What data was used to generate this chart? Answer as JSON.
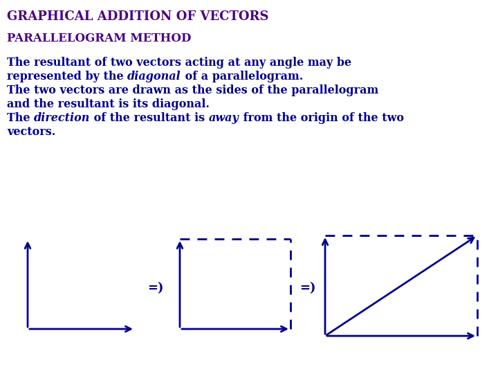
{
  "title": "GRAPHICAL ADDITION OF VECTORS",
  "subtitle": "PARALLELOGRAM METHOD",
  "title_color": "#4B0082",
  "subtitle_color": "#4B0082",
  "text_color": "#00008B",
  "arrow_color": "#00008B",
  "dashed_color": "#00008B",
  "diagonal_color": "#00008B",
  "bg_color": "#FFFFFF",
  "title_fontsize": 13,
  "subtitle_fontsize": 12,
  "body_fontsize": 11.5,
  "lines": [
    [
      [
        "The resultant of two vectors acting at any angle may be",
        "normal"
      ]
    ],
    [
      [
        "represented by the ",
        "normal"
      ],
      [
        "diagonal",
        "italic"
      ],
      [
        " of a parallelogram.",
        "normal"
      ]
    ],
    [
      [
        "The two vectors are drawn as the sides of the parallelogram",
        "normal"
      ]
    ],
    [
      [
        "and the resultant is its diagonal.",
        "normal"
      ]
    ],
    [
      [
        "The ",
        "normal"
      ],
      [
        "direction",
        "italic"
      ],
      [
        " of the resultant is ",
        "normal"
      ],
      [
        "away",
        "italic"
      ],
      [
        " from the origin of the two",
        "normal"
      ]
    ],
    [
      [
        "vectors.",
        "normal"
      ]
    ]
  ]
}
